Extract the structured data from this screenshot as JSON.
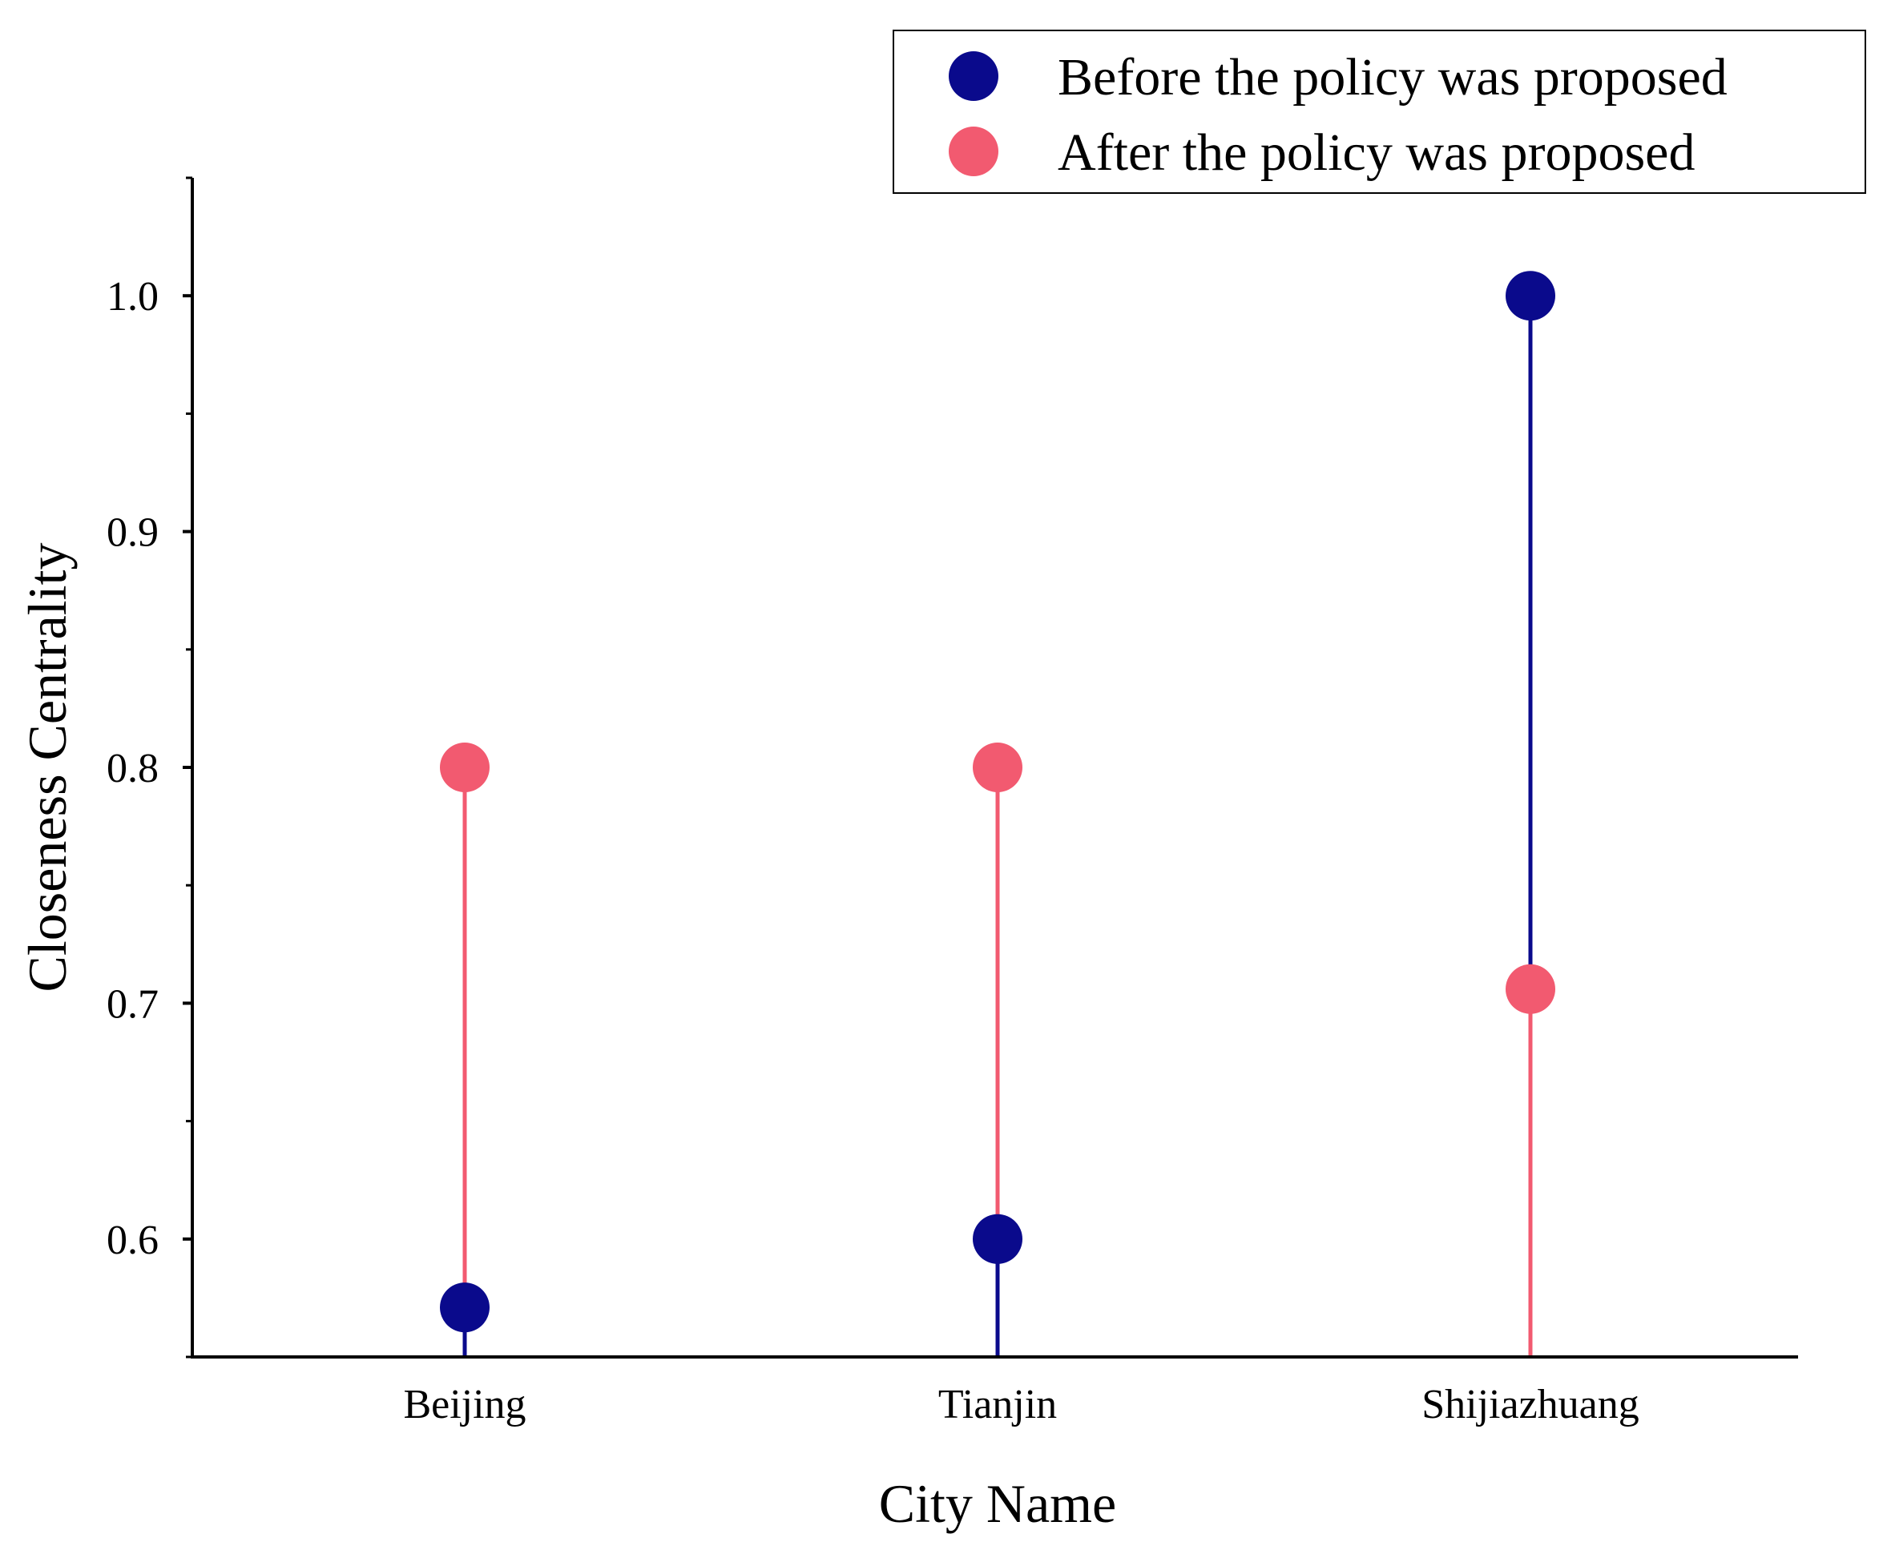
{
  "chart_data": {
    "type": "dumbbell",
    "title": "",
    "xlabel": "City Name",
    "ylabel": "Closeness Centrality",
    "categories": [
      "Beijing",
      "Tianjin",
      "Shijiazhuang"
    ],
    "ylim": [
      0.55,
      1.05
    ],
    "yticks": [
      0.6,
      0.7,
      0.8,
      0.9,
      1.0
    ],
    "ytick_labels": [
      "0.6",
      "0.7",
      "0.8",
      "0.9",
      "1.0"
    ],
    "grid": false,
    "legend_position": "top-right",
    "series": [
      {
        "name": "Before the policy was proposed",
        "color": "#0a0a8c",
        "values": [
          0.571,
          0.6,
          1.0
        ]
      },
      {
        "name": "After the policy was proposed",
        "color": "#f25a70",
        "values": [
          0.8,
          0.8,
          0.706
        ]
      }
    ]
  }
}
